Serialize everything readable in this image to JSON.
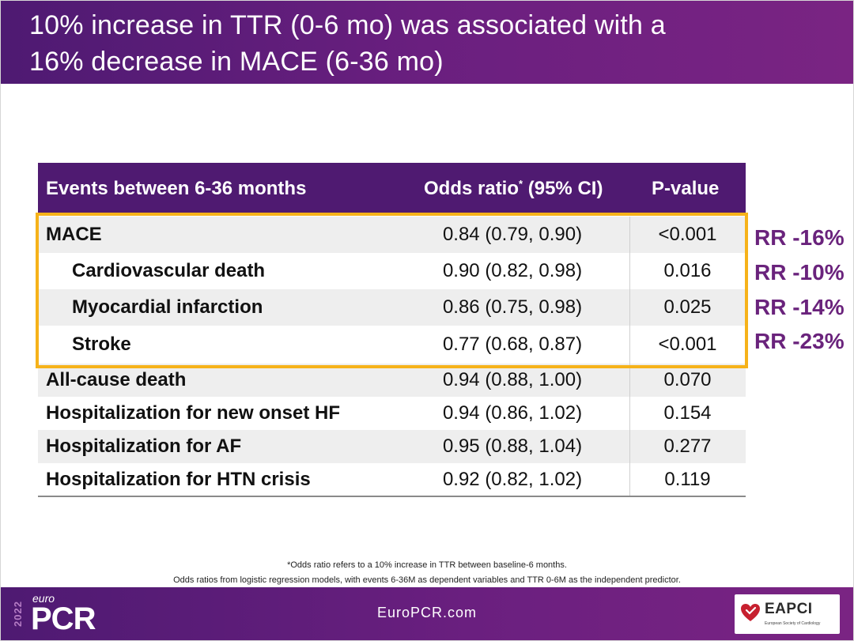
{
  "title": {
    "line1": "10% increase in TTR (0-6 mo) was associated with a",
    "line2": "16% decrease in MACE (6-36 mo)"
  },
  "table": {
    "headers": {
      "event": "Events between 6-36 months",
      "odds_ratio": "Odds ratio",
      "odds_ratio_sup": "*",
      "odds_ratio_ci": " (95% CI)",
      "p_value": "P-value"
    },
    "rows": [
      {
        "event": "MACE",
        "odds_ratio": "0.84 (0.79, 0.90)",
        "p_value": "<0.001"
      },
      {
        "event": "Cardiovascular death",
        "odds_ratio": "0.90 (0.82, 0.98)",
        "p_value": "0.016"
      },
      {
        "event": "Myocardial infarction",
        "odds_ratio": "0.86 (0.75, 0.98)",
        "p_value": "0.025"
      },
      {
        "event": "Stroke",
        "odds_ratio": "0.77 (0.68, 0.87)",
        "p_value": "<0.001"
      },
      {
        "event": "All-cause death",
        "odds_ratio": "0.94 (0.88, 1.00)",
        "p_value": "0.070"
      },
      {
        "event": "Hospitalization for new onset HF",
        "odds_ratio": "0.94 (0.86, 1.02)",
        "p_value": "0.154"
      },
      {
        "event": "Hospitalization for AF",
        "odds_ratio": "0.95 (0.88, 1.04)",
        "p_value": "0.277"
      },
      {
        "event": "Hospitalization for HTN crisis",
        "odds_ratio": "0.92 (0.82, 1.02)",
        "p_value": "0.119"
      }
    ]
  },
  "relative_risk": [
    "RR -16%",
    "RR -10%",
    "RR -14%",
    "RR -23%"
  ],
  "footnotes": {
    "line1": "*Odds ratio refers to a 10% increase in TTR between baseline-6 months.",
    "line2": "Odds ratios from logistic regression models, with events 6-36M as dependent variables and TTR 0-6M as the independent predictor."
  },
  "footer": {
    "year": "2022",
    "logo_euro": "euro",
    "logo_pcr": "PCR",
    "site": "EuroPCR.com",
    "partner_logo": "EAPCI",
    "partner_sub": "European Society of Cardiology"
  },
  "colors": {
    "brand_purple": "#4f1a71",
    "highlight": "#f6b21a",
    "rr_text": "#6a237c"
  }
}
